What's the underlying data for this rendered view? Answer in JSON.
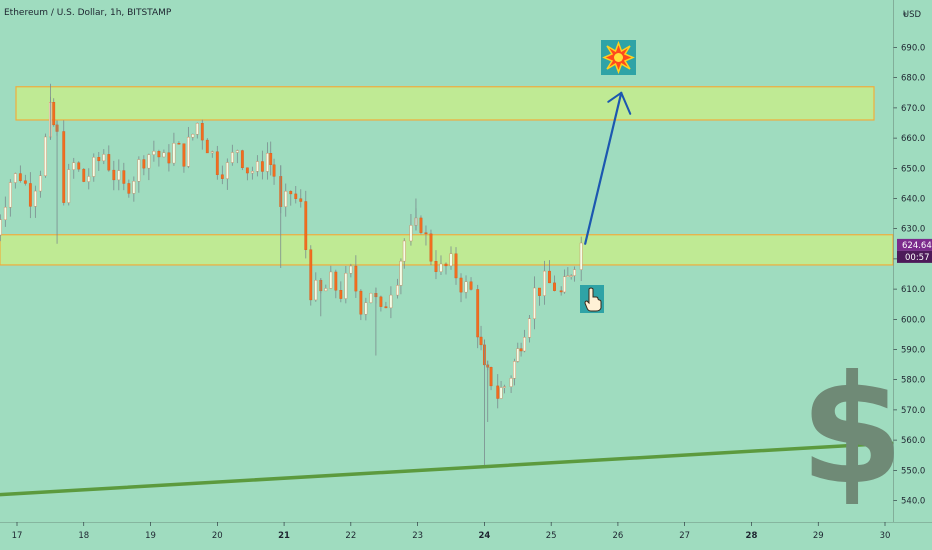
{
  "chart_data": {
    "type": "candlestick",
    "title": "Ethereum / U.S. Dollar, 1h, BITSTAMP",
    "currency_label": "USD",
    "y_ticks": [
      540,
      550,
      560,
      570,
      580,
      590,
      600,
      610,
      620,
      630,
      640,
      650,
      660,
      670,
      680,
      690
    ],
    "ylim": [
      535,
      705
    ],
    "x_ticks": [
      "17",
      "18",
      "19",
      "20",
      "21",
      "22",
      "23",
      "24",
      "25",
      "26",
      "27",
      "28",
      "29",
      "30"
    ],
    "x_ticks_bold": [
      "21",
      "24",
      "28"
    ],
    "last_price": "624.64",
    "countdown": "00:57",
    "candle_close_path": [
      [
        16.6,
        621
      ],
      [
        16.75,
        635
      ],
      [
        16.9,
        646
      ],
      [
        17.05,
        648
      ],
      [
        17.2,
        641
      ],
      [
        17.35,
        650
      ],
      [
        17.5,
        668
      ],
      [
        17.6,
        660
      ],
      [
        17.7,
        642
      ],
      [
        17.85,
        651
      ],
      [
        18.0,
        646
      ],
      [
        18.15,
        650
      ],
      [
        18.3,
        655
      ],
      [
        18.45,
        648
      ],
      [
        18.6,
        643
      ],
      [
        18.75,
        648
      ],
      [
        18.9,
        654
      ],
      [
        19.05,
        656
      ],
      [
        19.2,
        652
      ],
      [
        19.35,
        657
      ],
      [
        19.5,
        654
      ],
      [
        19.7,
        665
      ],
      [
        19.85,
        658
      ],
      [
        20.0,
        651
      ],
      [
        20.15,
        650
      ],
      [
        20.3,
        657
      ],
      [
        20.45,
        650
      ],
      [
        20.6,
        649
      ],
      [
        20.75,
        655
      ],
      [
        20.85,
        648
      ],
      [
        20.95,
        635
      ],
      [
        21.1,
        642
      ],
      [
        21.25,
        637
      ],
      [
        21.4,
        610
      ],
      [
        21.55,
        608
      ],
      [
        21.7,
        612
      ],
      [
        21.85,
        609
      ],
      [
        22.0,
        615
      ],
      [
        22.15,
        605
      ],
      [
        22.3,
        610
      ],
      [
        22.45,
        601
      ],
      [
        22.6,
        611
      ],
      [
        22.7,
        615
      ],
      [
        22.8,
        626
      ],
      [
        22.9,
        628
      ],
      [
        23.05,
        632
      ],
      [
        23.2,
        621
      ],
      [
        23.35,
        616
      ],
      [
        23.5,
        618
      ],
      [
        23.65,
        612
      ],
      [
        23.8,
        609
      ],
      [
        23.9,
        597
      ],
      [
        24.0,
        582
      ],
      [
        24.1,
        580
      ],
      [
        24.2,
        575
      ],
      [
        24.3,
        578
      ],
      [
        24.4,
        582
      ],
      [
        24.5,
        589
      ],
      [
        24.6,
        598
      ],
      [
        24.75,
        609
      ],
      [
        24.9,
        612
      ],
      [
        25.05,
        611
      ],
      [
        25.15,
        608
      ],
      [
        25.25,
        613
      ],
      [
        25.35,
        620
      ],
      [
        25.45,
        625
      ]
    ],
    "zones": [
      {
        "low": 666,
        "high": 677
      },
      {
        "low": 618,
        "high": 628
      }
    ],
    "trendline": [
      [
        16.0,
        541
      ],
      [
        30.1,
        559
      ]
    ],
    "projection_arrow": {
      "from": [
        25.45,
        625
      ],
      "to": [
        26.05,
        675
      ]
    },
    "colors": {
      "background": "#9fdcbf",
      "zone_fill": "#c4ec8c",
      "zone_border": "#f0ad3c",
      "trendline": "#5c9a3e",
      "arrow": "#1c57b0",
      "candle_up": "#f2fde8",
      "candle_down": "#f26d1e",
      "wick": "#7b8b8e",
      "last_price_bg": "#7c2b8c",
      "dollar_sign": "#6f8a76"
    },
    "icons": [
      "explosion-icon",
      "pointing-hand-icon",
      "dollar-sign-icon"
    ]
  }
}
